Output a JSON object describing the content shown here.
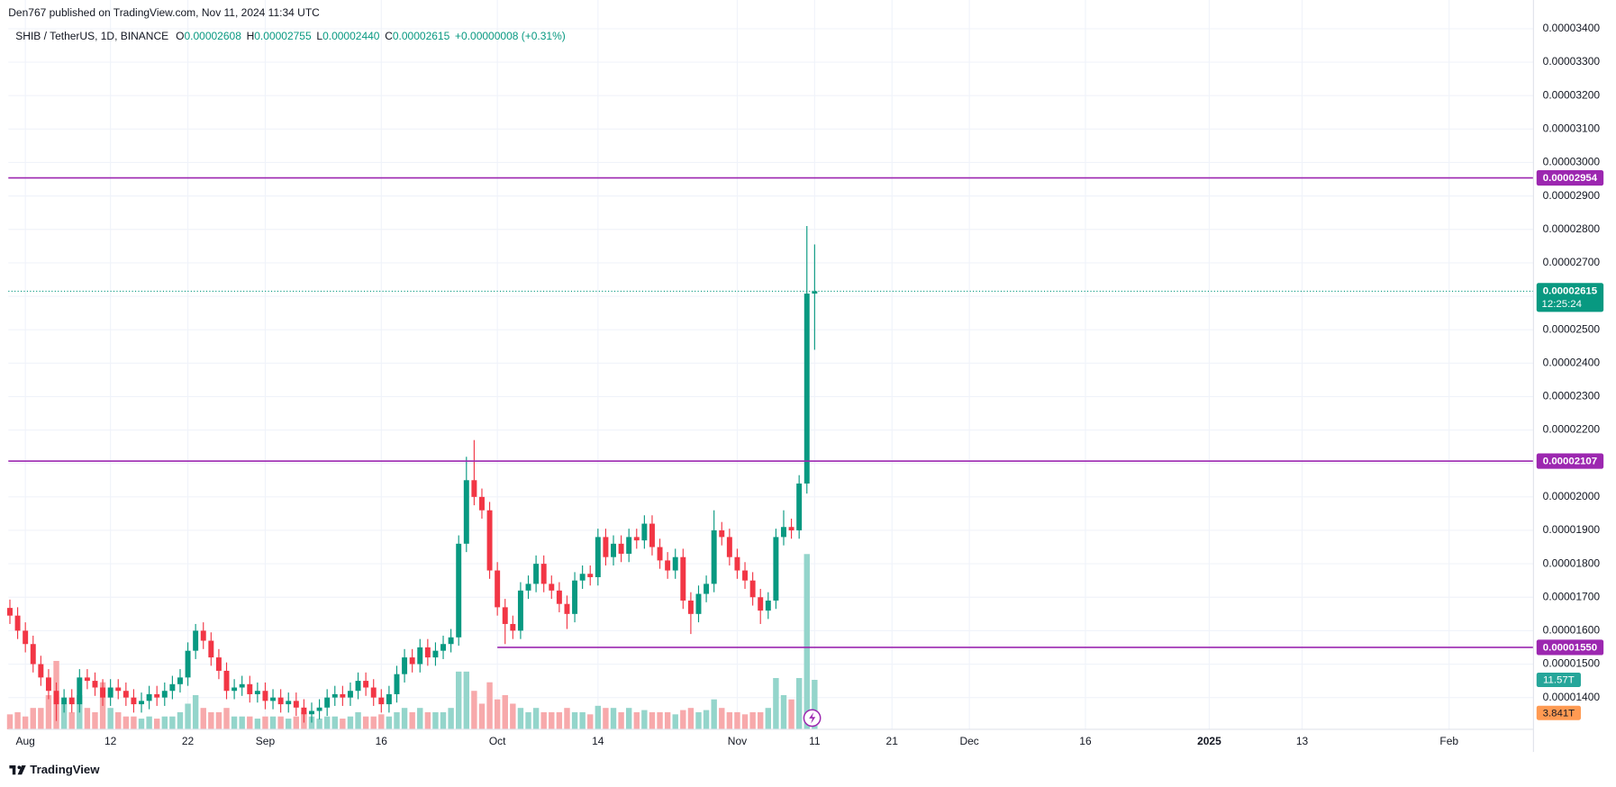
{
  "header": {
    "publisher": "Den767 published on TradingView.com, Nov 11, 2024 11:34 UTC"
  },
  "footer": {
    "brand": "TradingView"
  },
  "chart_data": {
    "type": "candlestick",
    "legend": {
      "symbol": "SHIB / TetherUS, 1D, BINANCE",
      "items": [
        {
          "key": "O",
          "value": "0.00002608"
        },
        {
          "key": "H",
          "value": "0.00002755"
        },
        {
          "key": "L",
          "value": "0.00002440"
        },
        {
          "key": "C",
          "value": "0.00002615"
        }
      ],
      "change": "+0.00000008 (+0.31%)"
    },
    "up_color": "#089981",
    "down_color": "#f23645",
    "volume_up_color": "#94d5cb",
    "volume_down_color": "#f7a9ab",
    "level_color": "#9c27b0",
    "grid": true,
    "open": [
      1.668e-05,
      1.645e-05,
      1.6e-05,
      1.56e-05,
      1.5e-05,
      1.46e-05,
      1.42e-05,
      1.38e-05,
      1.4e-05,
      1.38e-05,
      1.46e-05,
      1.45e-05,
      1.43e-05,
      1.4e-05,
      1.43e-05,
      1.42e-05,
      1.4e-05,
      1.38e-05,
      1.39e-05,
      1.41e-05,
      1.4e-05,
      1.42e-05,
      1.44e-05,
      1.46e-05,
      1.54e-05,
      1.6e-05,
      1.57e-05,
      1.52e-05,
      1.48e-05,
      1.42e-05,
      1.43e-05,
      1.44e-05,
      1.41e-05,
      1.42e-05,
      1.39e-05,
      1.4e-05,
      1.38e-05,
      1.39e-05,
      1.37e-05,
      1.35e-05,
      1.36e-05,
      1.37e-05,
      1.4e-05,
      1.41e-05,
      1.4e-05,
      1.42e-05,
      1.45e-05,
      1.43e-05,
      1.4e-05,
      1.38e-05,
      1.41e-05,
      1.47e-05,
      1.52e-05,
      1.5e-05,
      1.55e-05,
      1.52e-05,
      1.54e-05,
      1.56e-05,
      1.58e-05,
      1.86e-05,
      2.05e-05,
      2e-05,
      1.96e-05,
      1.78e-05,
      1.67e-05,
      1.62e-05,
      1.6e-05,
      1.72e-05,
      1.74e-05,
      1.8e-05,
      1.74e-05,
      1.72e-05,
      1.68e-05,
      1.65e-05,
      1.75e-05,
      1.77e-05,
      1.76e-05,
      1.88e-05,
      1.82e-05,
      1.86e-05,
      1.83e-05,
      1.88e-05,
      1.87e-05,
      1.92e-05,
      1.85e-05,
      1.81e-05,
      1.78e-05,
      1.82e-05,
      1.69e-05,
      1.65e-05,
      1.71e-05,
      1.74e-05,
      1.9e-05,
      1.88e-05,
      1.82e-05,
      1.78e-05,
      1.75e-05,
      1.7e-05,
      1.66e-05,
      1.69e-05,
      1.88e-05,
      1.91e-05,
      1.9e-05,
      2.04e-05,
      2.608e-05
    ],
    "high": [
      1.693e-05,
      1.67e-05,
      1.625e-05,
      1.585e-05,
      1.525e-05,
      1.485e-05,
      1.445e-05,
      1.425e-05,
      1.425e-05,
      1.485e-05,
      1.485e-05,
      1.475e-05,
      1.455e-05,
      1.455e-05,
      1.455e-05,
      1.445e-05,
      1.425e-05,
      1.415e-05,
      1.435e-05,
      1.435e-05,
      1.445e-05,
      1.465e-05,
      1.485e-05,
      1.565e-05,
      1.62e-05,
      1.625e-05,
      1.595e-05,
      1.545e-05,
      1.505e-05,
      1.455e-05,
      1.465e-05,
      1.465e-05,
      1.445e-05,
      1.445e-05,
      1.425e-05,
      1.425e-05,
      1.415e-05,
      1.415e-05,
      1.395e-05,
      1.385e-05,
      1.395e-05,
      1.425e-05,
      1.435e-05,
      1.435e-05,
      1.445e-05,
      1.475e-05,
      1.475e-05,
      1.455e-05,
      1.425e-05,
      1.435e-05,
      1.495e-05,
      1.545e-05,
      1.545e-05,
      1.575e-05,
      1.575e-05,
      1.565e-05,
      1.585e-05,
      1.605e-05,
      1.885e-05,
      2.12e-05,
      2.17e-05,
      2.025e-05,
      1.985e-05,
      1.805e-05,
      1.695e-05,
      1.645e-05,
      1.745e-05,
      1.765e-05,
      1.825e-05,
      1.825e-05,
      1.765e-05,
      1.745e-05,
      1.705e-05,
      1.775e-05,
      1.795e-05,
      1.795e-05,
      1.905e-05,
      1.905e-05,
      1.885e-05,
      1.885e-05,
      1.905e-05,
      1.905e-05,
      1.945e-05,
      1.945e-05,
      1.875e-05,
      1.835e-05,
      1.845e-05,
      1.845e-05,
      1.715e-05,
      1.735e-05,
      1.765e-05,
      1.96e-05,
      1.925e-05,
      1.905e-05,
      1.845e-05,
      1.805e-05,
      1.775e-05,
      1.725e-05,
      1.715e-05,
      1.905e-05,
      1.96e-05,
      1.935e-05,
      2.065e-05,
      2.81e-05,
      2.755e-05
    ],
    "low": [
      1.62e-05,
      1.575e-05,
      1.535e-05,
      1.475e-05,
      1.435e-05,
      1.395e-05,
      1.33e-05,
      1.355e-05,
      1.355e-05,
      1.355e-05,
      1.425e-05,
      1.405e-05,
      1.375e-05,
      1.375e-05,
      1.395e-05,
      1.375e-05,
      1.355e-05,
      1.355e-05,
      1.365e-05,
      1.375e-05,
      1.375e-05,
      1.395e-05,
      1.415e-05,
      1.435e-05,
      1.515e-05,
      1.545e-05,
      1.495e-05,
      1.455e-05,
      1.395e-05,
      1.395e-05,
      1.405e-05,
      1.385e-05,
      1.385e-05,
      1.365e-05,
      1.365e-05,
      1.355e-05,
      1.355e-05,
      1.345e-05,
      1.325e-05,
      1.325e-05,
      1.335e-05,
      1.345e-05,
      1.375e-05,
      1.375e-05,
      1.375e-05,
      1.395e-05,
      1.405e-05,
      1.375e-05,
      1.355e-05,
      1.355e-05,
      1.385e-05,
      1.445e-05,
      1.475e-05,
      1.475e-05,
      1.495e-05,
      1.495e-05,
      1.515e-05,
      1.535e-05,
      1.555e-05,
      1.835e-05,
      1.975e-05,
      1.935e-05,
      1.755e-05,
      1.645e-05,
      1.56e-05,
      1.575e-05,
      1.575e-05,
      1.695e-05,
      1.715e-05,
      1.715e-05,
      1.695e-05,
      1.655e-05,
      1.605e-05,
      1.625e-05,
      1.725e-05,
      1.735e-05,
      1.735e-05,
      1.795e-05,
      1.795e-05,
      1.805e-05,
      1.805e-05,
      1.845e-05,
      1.845e-05,
      1.825e-05,
      1.785e-05,
      1.755e-05,
      1.755e-05,
      1.665e-05,
      1.59e-05,
      1.625e-05,
      1.685e-05,
      1.715e-05,
      1.855e-05,
      1.795e-05,
      1.755e-05,
      1.725e-05,
      1.675e-05,
      1.62e-05,
      1.635e-05,
      1.665e-05,
      1.855e-05,
      1.875e-05,
      1.875e-05,
      2.01e-05,
      2.44e-05
    ],
    "close": [
      1.645e-05,
      1.6e-05,
      1.56e-05,
      1.5e-05,
      1.46e-05,
      1.42e-05,
      1.38e-05,
      1.4e-05,
      1.38e-05,
      1.46e-05,
      1.45e-05,
      1.43e-05,
      1.4e-05,
      1.43e-05,
      1.42e-05,
      1.4e-05,
      1.38e-05,
      1.39e-05,
      1.41e-05,
      1.4e-05,
      1.42e-05,
      1.44e-05,
      1.46e-05,
      1.54e-05,
      1.6e-05,
      1.57e-05,
      1.52e-05,
      1.48e-05,
      1.42e-05,
      1.43e-05,
      1.44e-05,
      1.41e-05,
      1.42e-05,
      1.39e-05,
      1.4e-05,
      1.38e-05,
      1.39e-05,
      1.37e-05,
      1.35e-05,
      1.36e-05,
      1.37e-05,
      1.4e-05,
      1.41e-05,
      1.4e-05,
      1.42e-05,
      1.45e-05,
      1.43e-05,
      1.4e-05,
      1.38e-05,
      1.41e-05,
      1.47e-05,
      1.52e-05,
      1.5e-05,
      1.55e-05,
      1.52e-05,
      1.54e-05,
      1.56e-05,
      1.58e-05,
      1.86e-05,
      2.05e-05,
      2e-05,
      1.96e-05,
      1.78e-05,
      1.67e-05,
      1.62e-05,
      1.6e-05,
      1.72e-05,
      1.74e-05,
      1.8e-05,
      1.74e-05,
      1.72e-05,
      1.68e-05,
      1.65e-05,
      1.75e-05,
      1.77e-05,
      1.76e-05,
      1.88e-05,
      1.82e-05,
      1.86e-05,
      1.83e-05,
      1.88e-05,
      1.87e-05,
      1.92e-05,
      1.85e-05,
      1.81e-05,
      1.78e-05,
      1.82e-05,
      1.69e-05,
      1.65e-05,
      1.71e-05,
      1.74e-05,
      1.9e-05,
      1.88e-05,
      1.82e-05,
      1.78e-05,
      1.75e-05,
      1.7e-05,
      1.66e-05,
      1.69e-05,
      1.88e-05,
      1.91e-05,
      1.9e-05,
      2.04e-05,
      2.608e-05,
      2.615e-05
    ],
    "volume": [
      3.5,
      4,
      3,
      5,
      5,
      8,
      16,
      6,
      4,
      8,
      5,
      4,
      11,
      5,
      4,
      3,
      3,
      2.5,
      3,
      2.5,
      3,
      3,
      4,
      6,
      8,
      5,
      4,
      4,
      5,
      3,
      3,
      3,
      2.5,
      3,
      3,
      3,
      2.5,
      3,
      4,
      3,
      2.5,
      3,
      3,
      2.5,
      3,
      4,
      3,
      3,
      3.5,
      3,
      4,
      5,
      4,
      5,
      4,
      4,
      4,
      5,
      13.5,
      13.5,
      9,
      6,
      11,
      7,
      8,
      6,
      5,
      4,
      5,
      4,
      4,
      4,
      5,
      4,
      4,
      3.5,
      5.5,
      5,
      5,
      4,
      5,
      4,
      4.5,
      4,
      4,
      4,
      3.5,
      4.5,
      5,
      4,
      4.5,
      7,
      5,
      4,
      4,
      3.5,
      4,
      4,
      5,
      12,
      8,
      7,
      12,
      41,
      11.57
    ],
    "volume_last_label": "11.57T",
    "volume_ma": {
      "value": 3.841,
      "label": "3.841T"
    },
    "last_price_label": "0.00002615",
    "countdown": "12:25:24",
    "levels": [
      {
        "value": 2.954e-05,
        "label": "0.00002954"
      },
      {
        "value": 2.107e-05,
        "label": "0.00002107"
      },
      {
        "value": 1.55e-05,
        "label": "0.00001550",
        "x_start": 63
      }
    ],
    "xlim": [
      -0.2,
      196.9
    ],
    "xticks": [
      {
        "value": 2,
        "label": "Aug"
      },
      {
        "value": 13,
        "label": "12"
      },
      {
        "value": 23,
        "label": "22"
      },
      {
        "value": 33,
        "label": "Sep"
      },
      {
        "value": 48,
        "label": "16"
      },
      {
        "value": 63,
        "label": "Oct"
      },
      {
        "value": 76,
        "label": "14"
      },
      {
        "value": 94,
        "label": "Nov"
      },
      {
        "value": 104,
        "label": "11"
      },
      {
        "value": 114,
        "label": "21"
      },
      {
        "value": 124,
        "label": "Dec"
      },
      {
        "value": 139,
        "label": "16"
      },
      {
        "value": 155,
        "label": "2025"
      },
      {
        "value": 167,
        "label": "13"
      },
      {
        "value": 186,
        "label": "Feb"
      }
    ],
    "ylim": [
      1.305e-05,
      3.486e-05
    ],
    "yticks": [
      {
        "value": 1.4e-05,
        "label": "0.00001400"
      },
      {
        "value": 1.5e-05,
        "label": "0.00001500"
      },
      {
        "value": 1.6e-05,
        "label": "0.00001600"
      },
      {
        "value": 1.7e-05,
        "label": "0.00001700"
      },
      {
        "value": 1.8e-05,
        "label": "0.00001800"
      },
      {
        "value": 1.9e-05,
        "label": "0.00001900"
      },
      {
        "value": 2e-05,
        "label": "0.00002000"
      },
      {
        "value": 2.1e-05,
        "label": "0.00002100"
      },
      {
        "value": 2.2e-05,
        "label": "0.00002200"
      },
      {
        "value": 2.3e-05,
        "label": "0.00002300"
      },
      {
        "value": 2.4e-05,
        "label": "0.00002400"
      },
      {
        "value": 2.5e-05,
        "label": "0.00002500"
      },
      {
        "value": 2.6e-05,
        "label": "0.00002600"
      },
      {
        "value": 2.7e-05,
        "label": "0.00002700"
      },
      {
        "value": 2.8e-05,
        "label": "0.00002800"
      },
      {
        "value": 2.9e-05,
        "label": "0.00002900"
      },
      {
        "value": 3e-05,
        "label": "0.00003000"
      },
      {
        "value": 3.1e-05,
        "label": "0.00003100"
      },
      {
        "value": 3.2e-05,
        "label": "0.00003200"
      },
      {
        "value": 3.3e-05,
        "label": "0.00003300"
      },
      {
        "value": 3.4e-05,
        "label": "0.00003400"
      }
    ]
  }
}
